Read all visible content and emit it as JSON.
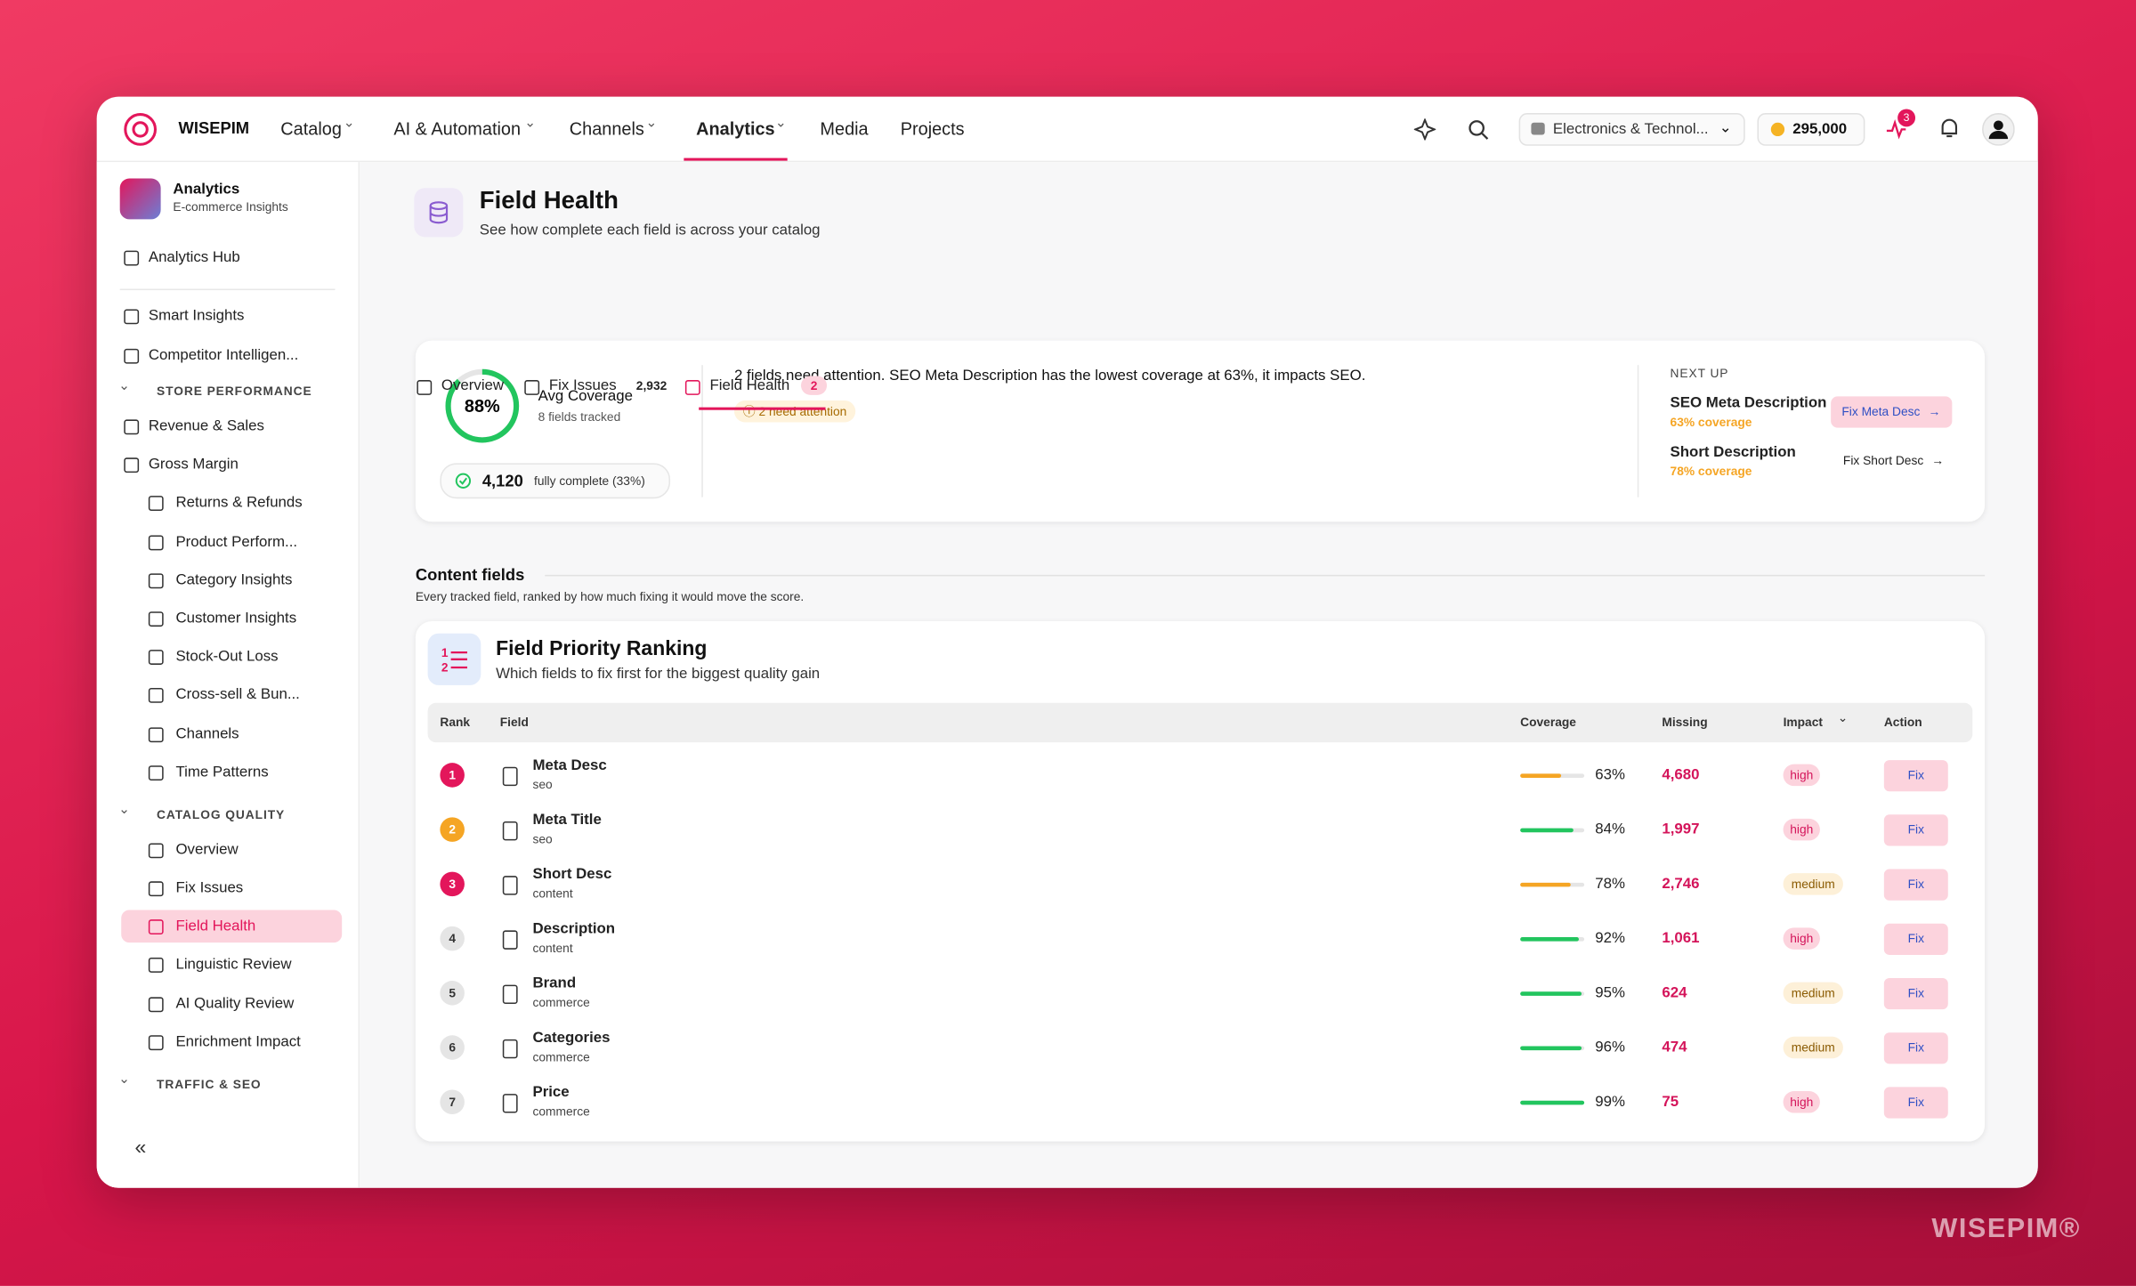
{
  "brand": "WISEPIM",
  "nav": {
    "items": [
      "Catalog",
      "AI & Automation",
      "Channels",
      "Analytics",
      "Media",
      "Projects"
    ],
    "active": 3
  },
  "topbar": {
    "store": "Electronics & Technol...",
    "credits": "295,000",
    "notifications": "3"
  },
  "sidebar": {
    "title": "Analytics",
    "subtitle": "E-commerce Insights",
    "top": [
      "Analytics Hub"
    ],
    "general": [
      "Smart Insights",
      "Competitor Intelligen..."
    ],
    "sections": [
      {
        "title": "STORE PERFORMANCE",
        "items": [
          "Revenue & Sales",
          "Gross Margin",
          "Returns & Refunds",
          "Product Perform...",
          "Category Insights",
          "Customer Insights",
          "Stock-Out Loss",
          "Cross-sell & Bun...",
          "Channels",
          "Time Patterns"
        ]
      },
      {
        "title": "CATALOG QUALITY",
        "items": [
          "Overview",
          "Fix Issues",
          "Field Health",
          "Linguistic Review",
          "AI Quality Review",
          "Enrichment Impact"
        ],
        "active": 2
      },
      {
        "title": "TRAFFIC & SEO"
      }
    ]
  },
  "header": {
    "title": "Field Health",
    "subtitle": "See how complete each field is across your catalog"
  },
  "tabs": [
    {
      "label": "Overview"
    },
    {
      "label": "Fix Issues",
      "badge": "2,932"
    },
    {
      "label": "Field Health",
      "badge": "2"
    }
  ],
  "summary": {
    "coverage": "88%",
    "coverage_label": "Avg Coverage",
    "fields_tracked": "8 fields tracked",
    "complete": "4,120",
    "complete_label": "fully complete (33%)",
    "message": "2 fields need attention. SEO Meta Description has the lowest coverage at 63%, it impacts SEO.",
    "attention": "2 need attention",
    "next_up": {
      "title": "NEXT UP",
      "items": [
        {
          "field": "SEO Meta Description",
          "coverage": "63% coverage",
          "action": "Fix Meta Desc"
        },
        {
          "field": "Short Description",
          "coverage": "78% coverage",
          "action": "Fix Short Desc"
        }
      ]
    }
  },
  "section": {
    "title": "Content fields",
    "description": "Every tracked field, ranked by how much fixing it would move the score."
  },
  "card": {
    "title": "Field Priority Ranking",
    "subtitle": "Which fields to fix first for the biggest quality gain"
  },
  "table": {
    "columns": [
      "Rank",
      "Field",
      "Coverage",
      "Missing",
      "Impact",
      "Action"
    ],
    "rows": [
      {
        "rank": "1",
        "field": "Meta Desc",
        "group": "seo",
        "coverage": "63%",
        "missing": "4,680",
        "impact": "high",
        "action": "Fix",
        "rank_color": "#e3165b",
        "bar_color": "#f5a524"
      },
      {
        "rank": "2",
        "field": "Meta Title",
        "group": "seo",
        "coverage": "84%",
        "missing": "1,997",
        "impact": "high",
        "action": "Fix",
        "rank_color": "#f5a524",
        "bar_color": "#22c55e"
      },
      {
        "rank": "3",
        "field": "Short Desc",
        "group": "content",
        "coverage": "78%",
        "missing": "2,746",
        "impact": "medium",
        "action": "Fix",
        "rank_color": "#e3165b",
        "bar_color": "#f5a524"
      },
      {
        "rank": "4",
        "field": "Description",
        "group": "content",
        "coverage": "92%",
        "missing": "1,061",
        "impact": "high",
        "action": "Fix",
        "rank_color": "#e5e5e5",
        "bar_color": "#22c55e"
      },
      {
        "rank": "5",
        "field": "Brand",
        "group": "commerce",
        "coverage": "95%",
        "missing": "624",
        "impact": "medium",
        "action": "Fix",
        "rank_color": "#e5e5e5",
        "bar_color": "#22c55e"
      },
      {
        "rank": "6",
        "field": "Categories",
        "group": "commerce",
        "coverage": "96%",
        "missing": "474",
        "impact": "medium",
        "action": "Fix",
        "rank_color": "#e5e5e5",
        "bar_color": "#22c55e"
      },
      {
        "rank": "7",
        "field": "Price",
        "group": "commerce",
        "coverage": "99%",
        "missing": "75",
        "impact": "high",
        "action": "Fix",
        "rank_color": "#e5e5e5",
        "bar_color": "#22c55e"
      }
    ]
  },
  "watermark": "WISEPIM®"
}
